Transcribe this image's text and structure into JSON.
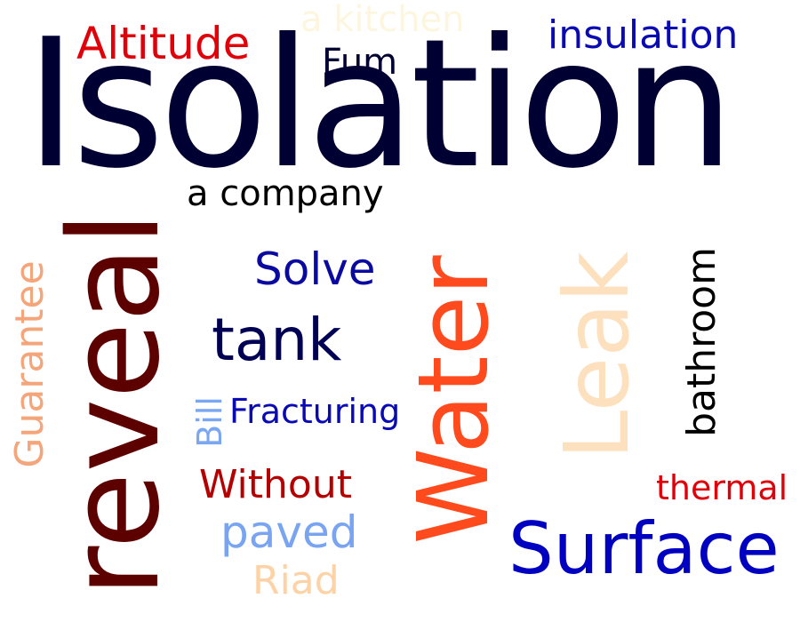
{
  "words": {
    "isolation": {
      "text": "Isolation",
      "color": "#000033"
    },
    "altitude": {
      "text": "Altitude",
      "color": "#e0000a"
    },
    "a_kitchen": {
      "text": "a kitchen",
      "color": "#fdf6df"
    },
    "fum": {
      "text": "Fum",
      "color": "#000033"
    },
    "insulation": {
      "text": "insulation",
      "color": "#0a0ab4"
    },
    "a_company": {
      "text": "a company",
      "color": "#000000"
    },
    "reveal": {
      "text": "reveal",
      "color": "#5c0000"
    },
    "guarantee": {
      "text": "Guarantee",
      "color": "#f5a57a"
    },
    "solve": {
      "text": "Solve",
      "color": "#0a0aa0"
    },
    "tank": {
      "text": "tank",
      "color": "#000055"
    },
    "bill": {
      "text": "Bill",
      "color": "#7aa6f2"
    },
    "fracturing": {
      "text": "Fracturing",
      "color": "#0a0ab4"
    },
    "water": {
      "text": "Water",
      "color": "#ff4a1e"
    },
    "leak": {
      "text": "Leak",
      "color": "#fde1bf"
    },
    "bathroom": {
      "text": "bathroom",
      "color": "#000000"
    },
    "without": {
      "text": "Without",
      "color": "#b40000"
    },
    "thermal": {
      "text": "thermal",
      "color": "#e0000a"
    },
    "paved": {
      "text": "paved",
      "color": "#78a4f2"
    },
    "surface": {
      "text": "Surface",
      "color": "#0000c0"
    },
    "riad": {
      "text": "Riad",
      "color": "#fdd2a6"
    }
  }
}
